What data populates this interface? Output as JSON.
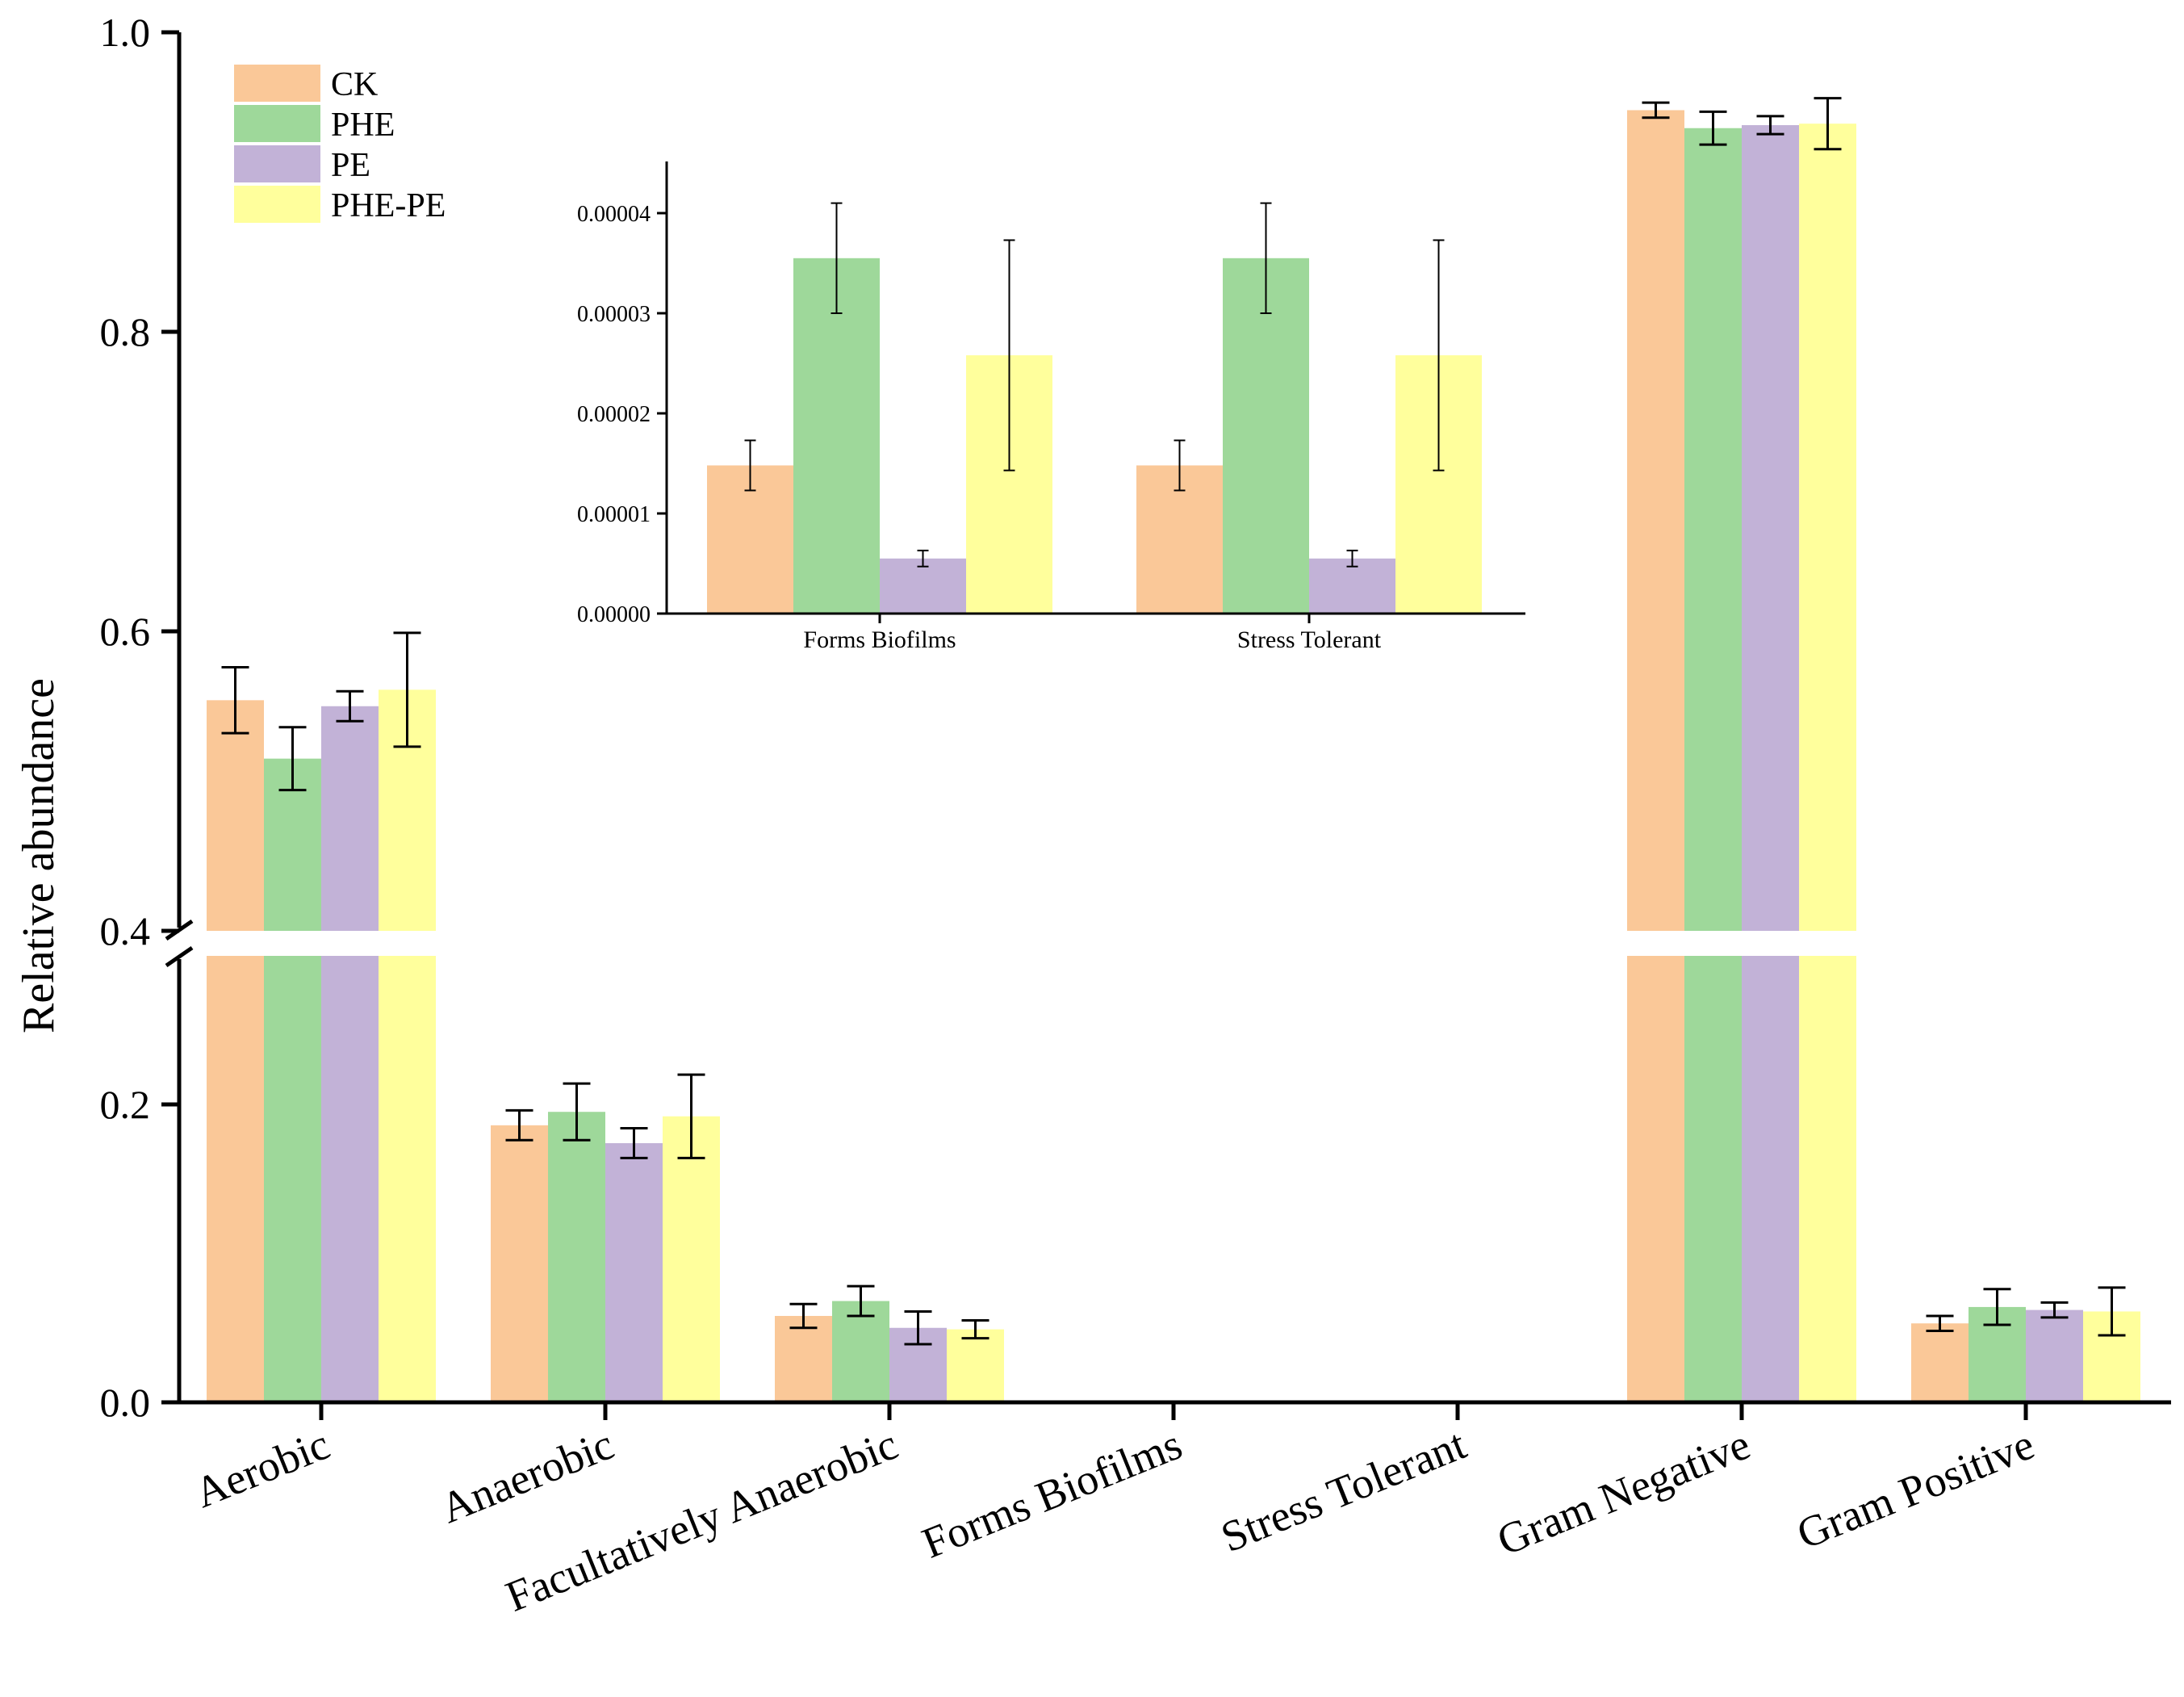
{
  "chart_data": [
    {
      "type": "bar",
      "role": "main",
      "ylabel": "Relative abundance",
      "xlabel": "",
      "categories": [
        "Aerobic",
        "Anaerobic",
        "Facultatively Anaerobic",
        "Forms Biofilms",
        "Stress Tolerant",
        "Gram Negative",
        "Gram Positive"
      ],
      "axis_break": [
        0.28,
        0.4
      ],
      "ylim_lower": [
        0,
        0.28
      ],
      "ylim_upper": [
        0.4,
        1.0
      ],
      "yticks": [
        "0.0",
        "0.2",
        "0.4",
        "0.6",
        "0.8",
        "1.0"
      ],
      "series": [
        {
          "name": "CK",
          "color": "#FAC898",
          "values": [
            0.554,
            0.186,
            0.058,
            1.48e-05,
            1.48e-05,
            0.948,
            0.053
          ],
          "errors": [
            0.022,
            0.01,
            0.008,
            2.5e-06,
            2.5e-06,
            0.005,
            0.005
          ]
        },
        {
          "name": "PHE",
          "color": "#9ED89A",
          "values": [
            0.515,
            0.195,
            0.068,
            3.55e-05,
            3.55e-05,
            0.936,
            0.064
          ],
          "errors": [
            0.021,
            0.019,
            0.01,
            5.5e-06,
            5.5e-06,
            0.011,
            0.012
          ]
        },
        {
          "name": "PE",
          "color": "#C2B2D7",
          "values": [
            0.55,
            0.174,
            0.05,
            5.5e-06,
            5.5e-06,
            0.938,
            0.062
          ],
          "errors": [
            0.01,
            0.01,
            0.011,
            8e-07,
            8e-07,
            0.006,
            0.005
          ]
        },
        {
          "name": "PHE-PE",
          "color": "#FFFF9C",
          "values": [
            0.561,
            0.192,
            0.049,
            2.58e-05,
            2.58e-05,
            0.939,
            0.061
          ],
          "errors": [
            0.038,
            0.028,
            0.006,
            1.15e-05,
            1.15e-05,
            0.017,
            0.016
          ]
        }
      ],
      "legend": [
        "CK",
        "PHE",
        "PE",
        "PHE-PE"
      ]
    },
    {
      "type": "bar",
      "role": "inset",
      "categories": [
        "Forms Biofilms",
        "Stress Tolerant"
      ],
      "ylim": [
        0,
        4.5e-05
      ],
      "yticks": [
        "0.00000",
        "0.00001",
        "0.00002",
        "0.00003",
        "0.00004"
      ],
      "series": [
        {
          "name": "CK",
          "color": "#FAC898",
          "values": [
            1.48e-05,
            1.48e-05
          ],
          "errors": [
            2.5e-06,
            2.5e-06
          ]
        },
        {
          "name": "PHE",
          "color": "#9ED89A",
          "values": [
            3.55e-05,
            3.55e-05
          ],
          "errors": [
            5.5e-06,
            5.5e-06
          ]
        },
        {
          "name": "PE",
          "color": "#C2B2D7",
          "values": [
            5.5e-06,
            5.5e-06
          ],
          "errors": [
            8e-07,
            8e-07
          ]
        },
        {
          "name": "PHE-PE",
          "color": "#FFFF9C",
          "values": [
            2.58e-05,
            2.58e-05
          ],
          "errors": [
            1.15e-05,
            1.15e-05
          ]
        }
      ]
    }
  ]
}
